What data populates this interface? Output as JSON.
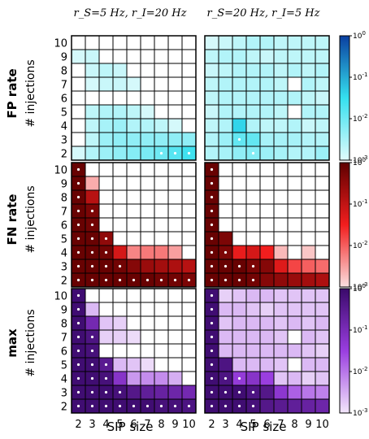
{
  "column_titles": [
    "r_S=5 Hz, r_I=20 Hz",
    "r_S=20 Hz, r_I=5 Hz"
  ],
  "row_titles": [
    "FP rate",
    "FN rate",
    "max"
  ],
  "y_axis_label": "# injections",
  "x_axis_label": "SIP size",
  "x_ticks": [
    "2",
    "3",
    "4",
    "5",
    "6",
    "7",
    "8",
    "9",
    "10"
  ],
  "y_ticks": [
    "10",
    "9",
    "8",
    "7",
    "6",
    "5",
    "4",
    "3",
    "2"
  ],
  "colorbar_ticks": [
    {
      "base": "10",
      "exp": "0"
    },
    {
      "base": "10",
      "exp": "-1"
    },
    {
      "base": "10",
      "exp": "-2"
    },
    {
      "base": "10",
      "exp": "-3"
    }
  ],
  "colors": {
    "fp_low": "#e0fbfc",
    "fp_mid": "#35e0ef",
    "fp_high": "#0a3fa0",
    "fn_low": "#fbe0e0",
    "fn_mid": "#f21e1e",
    "fn_high": "#5e0000",
    "max_low": "#f3e6fb",
    "max_mid": "#9a3ee0",
    "max_high": "#3a0a6a",
    "empty": "#ffffff",
    "grid": "#000000",
    "dot": "#ffffff"
  },
  "chart_data": {
    "type": "heatmap",
    "scale": "log",
    "value_range": [
      0.001,
      1
    ],
    "x": [
      2,
      3,
      4,
      5,
      6,
      7,
      8,
      9,
      10
    ],
    "xlabel": "SIP size",
    "y": [
      10,
      9,
      8,
      7,
      6,
      5,
      4,
      3,
      2
    ],
    "ylabel": "# injections",
    "note": "grid values are log10(rate); null = white cell; dot marks flagged cells",
    "panels": [
      {
        "row": "FP rate",
        "column": "r_S=5 Hz, r_I=20 Hz",
        "values": [
          [
            null,
            null,
            null,
            null,
            null,
            null,
            null,
            null,
            null
          ],
          [
            -2.9,
            -2.8,
            null,
            null,
            null,
            null,
            null,
            null,
            null
          ],
          [
            null,
            -2.8,
            -2.7,
            -2.8,
            null,
            null,
            null,
            null,
            null
          ],
          [
            null,
            -2.9,
            -2.8,
            -2.8,
            -2.9,
            null,
            null,
            null,
            null
          ],
          [
            null,
            null,
            null,
            null,
            null,
            null,
            null,
            null,
            null
          ],
          [
            null,
            -2.7,
            -2.6,
            -2.6,
            -2.7,
            -2.9,
            null,
            null,
            null
          ],
          [
            null,
            -2.7,
            -2.5,
            -2.4,
            -2.6,
            -2.6,
            -2.7,
            -2.9,
            null
          ],
          [
            null,
            -2.7,
            -2.4,
            -2.3,
            -2.3,
            -2.3,
            -2.3,
            -2.3,
            -2.3
          ],
          [
            -2.9,
            -2.6,
            -2.4,
            -2.3,
            -2.2,
            -2.1,
            -2.0,
            -1.8,
            -1.6
          ]
        ],
        "dots": [
          [
            8,
            6
          ],
          [
            8,
            7
          ],
          [
            8,
            8
          ]
        ]
      },
      {
        "row": "FP rate",
        "column": "r_S=20 Hz, r_I=5 Hz",
        "values": [
          [
            -2.9,
            -2.8,
            -2.7,
            -2.6,
            -2.6,
            -2.7,
            -2.7,
            -2.7,
            -2.7
          ],
          [
            -2.7,
            -2.6,
            -2.6,
            -2.7,
            -2.8,
            -2.7,
            -2.7,
            -2.7,
            -2.7
          ],
          [
            -2.8,
            -2.7,
            -2.6,
            -2.6,
            -2.6,
            -2.7,
            -2.6,
            -2.7,
            -2.6
          ],
          [
            -2.7,
            -2.6,
            -2.6,
            -2.6,
            -2.6,
            -2.7,
            null,
            -2.6,
            -2.7
          ],
          [
            -2.7,
            -2.6,
            -2.6,
            -2.6,
            -2.6,
            -2.6,
            -2.6,
            -2.7,
            -2.8
          ],
          [
            -2.8,
            -2.6,
            -2.6,
            -2.6,
            -2.6,
            -2.7,
            null,
            -2.6,
            -2.6
          ],
          [
            -2.7,
            -2.6,
            -1.4,
            -2.6,
            -2.7,
            -2.7,
            -2.6,
            -2.8,
            -2.7
          ],
          [
            -2.6,
            -2.4,
            -1.9,
            -1.9,
            -2.5,
            -2.5,
            -2.5,
            -2.6,
            -2.6
          ],
          [
            -2.6,
            -2.5,
            -2.3,
            -2.2,
            -2.4,
            -2.5,
            -2.6,
            -2.6,
            -2.4
          ]
        ],
        "dots": [
          [
            7,
            2
          ],
          [
            8,
            3
          ]
        ]
      },
      {
        "row": "FN rate",
        "column": "r_S=5 Hz, r_I=20 Hz",
        "values": [
          [
            -0.1,
            null,
            null,
            null,
            null,
            null,
            null,
            null,
            null
          ],
          [
            -0.1,
            -2.6,
            null,
            null,
            null,
            null,
            null,
            null,
            null
          ],
          [
            -0.1,
            -0.9,
            null,
            null,
            null,
            null,
            null,
            null,
            null
          ],
          [
            -0.1,
            -0.3,
            null,
            null,
            null,
            null,
            null,
            null,
            null
          ],
          [
            -0.1,
            -0.2,
            null,
            null,
            null,
            null,
            null,
            null,
            null
          ],
          [
            -0.1,
            -0.1,
            -0.5,
            null,
            null,
            null,
            null,
            null,
            null
          ],
          [
            -0.1,
            -0.1,
            -0.2,
            -1.2,
            -2.3,
            -2.2,
            -2.2,
            -2.5,
            null
          ],
          [
            -0.1,
            -0.1,
            -0.1,
            -0.2,
            -0.4,
            -0.6,
            -0.7,
            -0.8,
            -0.9
          ],
          [
            -0.1,
            -0.1,
            -0.1,
            -0.1,
            -0.1,
            -0.1,
            -0.2,
            -0.2,
            -0.3
          ]
        ],
        "dots": [
          [
            0,
            0
          ],
          [
            1,
            0
          ],
          [
            2,
            0
          ],
          [
            3,
            0
          ],
          [
            3,
            1
          ],
          [
            4,
            0
          ],
          [
            4,
            1
          ],
          [
            5,
            0
          ],
          [
            5,
            1
          ],
          [
            5,
            2
          ],
          [
            6,
            0
          ],
          [
            6,
            1
          ],
          [
            6,
            2
          ],
          [
            7,
            0
          ],
          [
            7,
            1
          ],
          [
            7,
            2
          ],
          [
            7,
            3
          ],
          [
            8,
            0
          ],
          [
            8,
            1
          ],
          [
            8,
            2
          ],
          [
            8,
            3
          ],
          [
            8,
            4
          ],
          [
            8,
            5
          ],
          [
            8,
            6
          ],
          [
            8,
            7
          ],
          [
            8,
            8
          ]
        ]
      },
      {
        "row": "FN rate",
        "column": "r_S=20 Hz, r_I=5 Hz",
        "values": [
          [
            -0.1,
            null,
            null,
            null,
            null,
            null,
            null,
            null,
            null
          ],
          [
            -0.1,
            null,
            null,
            null,
            null,
            null,
            null,
            null,
            null
          ],
          [
            -0.1,
            null,
            null,
            null,
            null,
            null,
            null,
            null,
            null
          ],
          [
            -0.1,
            null,
            null,
            null,
            null,
            null,
            null,
            null,
            null
          ],
          [
            -0.1,
            null,
            null,
            null,
            null,
            null,
            null,
            null,
            null
          ],
          [
            -0.1,
            -0.3,
            null,
            null,
            null,
            null,
            null,
            null,
            null
          ],
          [
            -0.1,
            -0.3,
            -1.4,
            -1.2,
            -1.5,
            -2.7,
            null,
            -2.8,
            null
          ],
          [
            -0.1,
            -0.1,
            -0.1,
            -0.3,
            -0.4,
            -1.3,
            -1.8,
            -2.0,
            -2.1
          ],
          [
            -0.1,
            -0.1,
            -0.1,
            -0.2,
            -0.4,
            -0.5,
            -0.6,
            -0.7,
            -0.8
          ]
        ],
        "dots": [
          [
            0,
            0
          ],
          [
            1,
            0
          ],
          [
            2,
            0
          ],
          [
            3,
            0
          ],
          [
            4,
            0
          ],
          [
            5,
            0
          ],
          [
            6,
            0
          ],
          [
            6,
            1
          ],
          [
            7,
            0
          ],
          [
            7,
            1
          ],
          [
            7,
            2
          ],
          [
            7,
            3
          ],
          [
            8,
            0
          ],
          [
            8,
            1
          ],
          [
            8,
            2
          ],
          [
            8,
            3
          ]
        ]
      },
      {
        "row": "max",
        "column": "r_S=5 Hz, r_I=20 Hz",
        "values": [
          [
            -0.1,
            null,
            null,
            null,
            null,
            null,
            null,
            null,
            null
          ],
          [
            -0.1,
            -2.6,
            null,
            null,
            null,
            null,
            null,
            null,
            null
          ],
          [
            -0.1,
            -0.9,
            -2.7,
            -2.8,
            null,
            null,
            null,
            null,
            null
          ],
          [
            -0.1,
            -0.3,
            -2.8,
            -2.8,
            -2.9,
            null,
            null,
            null,
            null
          ],
          [
            -0.1,
            -0.2,
            null,
            null,
            null,
            null,
            null,
            null,
            null
          ],
          [
            -0.1,
            -0.1,
            -0.5,
            -2.6,
            -2.7,
            -2.9,
            null,
            null,
            null
          ],
          [
            -0.1,
            -0.1,
            -0.2,
            -1.2,
            -2.3,
            -2.2,
            -2.2,
            -2.5,
            null
          ],
          [
            -0.1,
            -0.1,
            -0.1,
            -0.2,
            -0.4,
            -0.6,
            -0.7,
            -0.8,
            -0.9
          ],
          [
            -0.1,
            -0.1,
            -0.1,
            -0.1,
            -0.1,
            -0.1,
            -0.2,
            -0.2,
            -0.3
          ]
        ],
        "dots": [
          [
            0,
            0
          ],
          [
            1,
            0
          ],
          [
            2,
            0
          ],
          [
            3,
            0
          ],
          [
            3,
            1
          ],
          [
            4,
            0
          ],
          [
            4,
            1
          ],
          [
            5,
            0
          ],
          [
            5,
            1
          ],
          [
            5,
            2
          ],
          [
            6,
            0
          ],
          [
            6,
            1
          ],
          [
            6,
            2
          ],
          [
            7,
            0
          ],
          [
            7,
            1
          ],
          [
            7,
            2
          ],
          [
            7,
            3
          ],
          [
            8,
            0
          ],
          [
            8,
            1
          ],
          [
            8,
            2
          ],
          [
            8,
            3
          ],
          [
            8,
            4
          ],
          [
            8,
            5
          ],
          [
            8,
            6
          ],
          [
            8,
            7
          ],
          [
            8,
            8
          ]
        ]
      },
      {
        "row": "max",
        "column": "r_S=20 Hz, r_I=5 Hz",
        "values": [
          [
            -0.1,
            -2.8,
            -2.7,
            -2.6,
            -2.6,
            -2.7,
            -2.7,
            -2.7,
            -2.7
          ],
          [
            -0.1,
            -2.6,
            -2.6,
            -2.7,
            -2.8,
            -2.7,
            -2.7,
            -2.7,
            -2.7
          ],
          [
            -0.1,
            -2.7,
            -2.6,
            -2.6,
            -2.6,
            -2.7,
            -2.6,
            -2.7,
            -2.6
          ],
          [
            -0.1,
            -2.6,
            -2.6,
            -2.6,
            -2.6,
            -2.7,
            null,
            -2.6,
            -2.7
          ],
          [
            -0.1,
            -2.6,
            -2.6,
            -2.6,
            -2.6,
            -2.6,
            -2.6,
            -2.7,
            -2.8
          ],
          [
            -0.1,
            -0.3,
            -2.6,
            -2.6,
            -2.6,
            -2.7,
            null,
            -2.6,
            -2.6
          ],
          [
            -0.1,
            -0.3,
            -1.4,
            -1.2,
            -1.5,
            -2.7,
            -2.6,
            -2.8,
            -2.7
          ],
          [
            -0.1,
            -0.1,
            -0.1,
            -0.3,
            -0.4,
            -1.3,
            -1.8,
            -2.0,
            -2.1
          ],
          [
            -0.1,
            -0.1,
            -0.1,
            -0.2,
            -0.4,
            -0.5,
            -0.6,
            -0.7,
            -0.8
          ]
        ],
        "dots": [
          [
            0,
            0
          ],
          [
            1,
            0
          ],
          [
            2,
            0
          ],
          [
            3,
            0
          ],
          [
            4,
            0
          ],
          [
            5,
            0
          ],
          [
            6,
            0
          ],
          [
            6,
            1
          ],
          [
            6,
            2
          ],
          [
            7,
            0
          ],
          [
            7,
            1
          ],
          [
            7,
            2
          ],
          [
            7,
            3
          ],
          [
            8,
            0
          ],
          [
            8,
            1
          ],
          [
            8,
            2
          ],
          [
            8,
            3
          ]
        ]
      }
    ]
  }
}
